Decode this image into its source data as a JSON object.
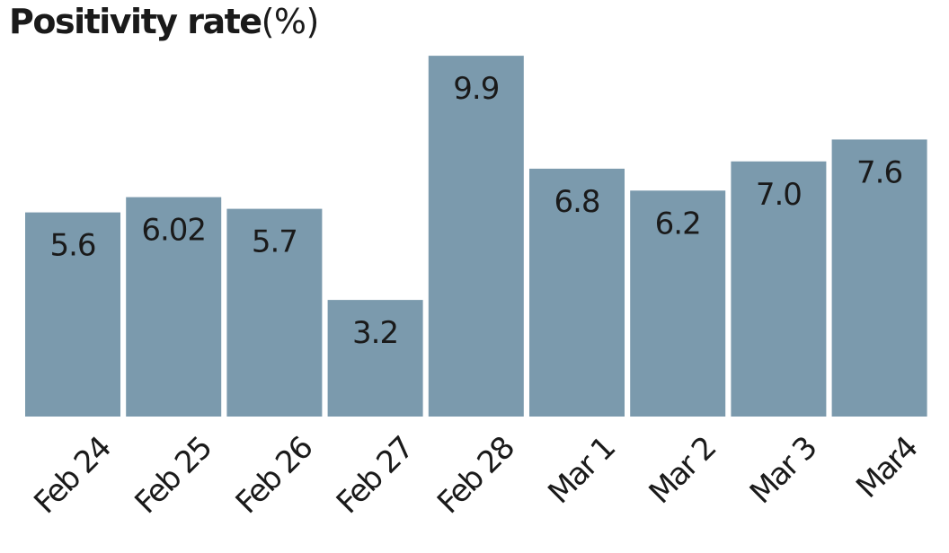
{
  "title": {
    "main": "Positivity rate",
    "unit": "(%)"
  },
  "colors": {
    "bar": "#7b9aad",
    "text": "#1a1a1a"
  },
  "chart_data": {
    "type": "bar",
    "title": "Positivity rate(%)",
    "xlabel": "",
    "ylabel": "",
    "ylim": [
      0,
      10.2
    ],
    "grid": false,
    "legend": "none",
    "categories": [
      "Feb 24",
      "Feb 25",
      "Feb 26",
      "Feb 27",
      "Feb 28",
      "Mar 1",
      "Mar 2",
      "Mar 3",
      "Mar4"
    ],
    "values": [
      5.6,
      6.02,
      5.7,
      3.2,
      9.9,
      6.8,
      6.2,
      7.0,
      7.6
    ],
    "data_labels": [
      "5.6",
      "6.02",
      "5.7",
      "3.2",
      "9.9",
      "6.8",
      "6.2",
      "7.0",
      "7.6"
    ]
  }
}
